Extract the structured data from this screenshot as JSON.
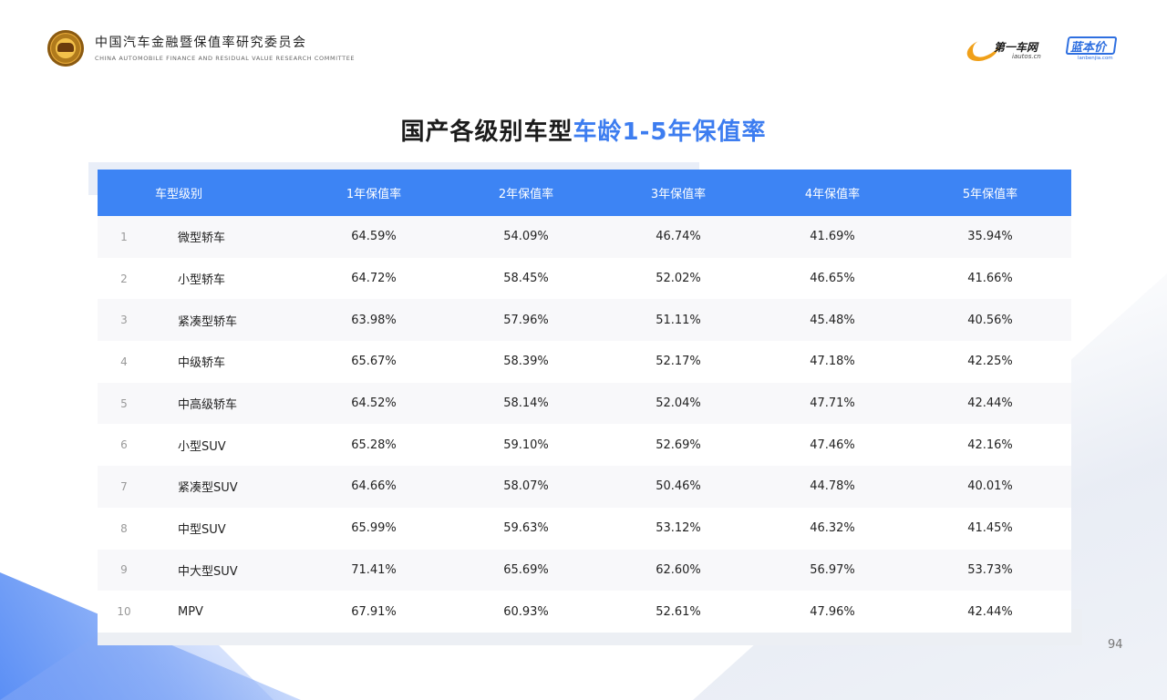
{
  "header": {
    "org_cn": "中国汽车金融暨保值率研究委员会",
    "org_en": "CHINA AUTOMOBILE FINANCE AND RESIDUAL VALUE RESEARCH COMMITTEE",
    "partner1_name": "第一车网",
    "partner1_url": "iautos.cn",
    "partner2_name": "蓝本价",
    "partner2_url": "lanbenjia.com"
  },
  "title": {
    "main": "国产各级别车型",
    "highlight": "车龄1-5年保值率"
  },
  "table": {
    "headers": [
      "",
      "车型级别",
      "1年保值率",
      "2年保值率",
      "3年保值率",
      "4年保值率",
      "5年保值率"
    ],
    "rows": [
      [
        "1",
        "微型轿车",
        "64.59%",
        "54.09%",
        "46.74%",
        "41.69%",
        "35.94%"
      ],
      [
        "2",
        "小型轿车",
        "64.72%",
        "58.45%",
        "52.02%",
        "46.65%",
        "41.66%"
      ],
      [
        "3",
        "紧凑型轿车",
        "63.98%",
        "57.96%",
        "51.11%",
        "45.48%",
        "40.56%"
      ],
      [
        "4",
        "中级轿车",
        "65.67%",
        "58.39%",
        "52.17%",
        "47.18%",
        "42.25%"
      ],
      [
        "5",
        "中高级轿车",
        "64.52%",
        "58.14%",
        "52.04%",
        "47.71%",
        "42.44%"
      ],
      [
        "6",
        "小型SUV",
        "65.28%",
        "59.10%",
        "52.69%",
        "47.46%",
        "42.16%"
      ],
      [
        "7",
        "紧凑型SUV",
        "64.66%",
        "58.07%",
        "50.46%",
        "44.78%",
        "40.01%"
      ],
      [
        "8",
        "中型SUV",
        "65.99%",
        "59.63%",
        "53.12%",
        "46.32%",
        "41.45%"
      ],
      [
        "9",
        "中大型SUV",
        "71.41%",
        "65.69%",
        "62.60%",
        "56.97%",
        "53.73%"
      ],
      [
        "10",
        "MPV",
        "67.91%",
        "60.93%",
        "52.61%",
        "47.96%",
        "42.44%"
      ]
    ]
  },
  "page_number": "94",
  "colors": {
    "accent": "#3d84f4",
    "title_highlight": "#3d7df0"
  }
}
